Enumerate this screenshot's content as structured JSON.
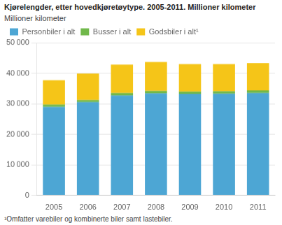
{
  "chart_data": {
    "type": "bar",
    "title": "Kjørelengder, etter hovedkjøretøytype. 2005-2011. Millioner kilometer",
    "y_label": "Millioner kilometer",
    "footnote": "¹Omfatter varebiler og kombinerte biler samt lastebiler.",
    "categories": [
      "2005",
      "2006",
      "2007",
      "2008",
      "2009",
      "2010",
      "2011"
    ],
    "series": [
      {
        "name": "Personbiler i alt",
        "color": "#4da6d4",
        "values": [
          29000,
          30500,
          32700,
          33400,
          33200,
          33300,
          33500
        ]
      },
      {
        "name": "Busser i alt",
        "color": "#70b84a",
        "values": [
          700,
          700,
          800,
          800,
          800,
          800,
          850
        ]
      },
      {
        "name": "Godsbiler i alt¹",
        "color": "#f5c518",
        "values": [
          8000,
          8700,
          9300,
          9500,
          9000,
          8900,
          9000
        ]
      }
    ],
    "stacked": true,
    "ylim": [
      0,
      50000
    ],
    "yticks": [
      0,
      {
        "value": 10000,
        "label": "10 000"
      },
      {
        "value": 20000,
        "label": "20 000"
      },
      {
        "value": 30000,
        "label": "30 000"
      },
      {
        "value": 40000,
        "label": "40 000"
      },
      {
        "value": 50000,
        "label": "50 000"
      }
    ],
    "grid": "y",
    "legend": "upper left"
  }
}
